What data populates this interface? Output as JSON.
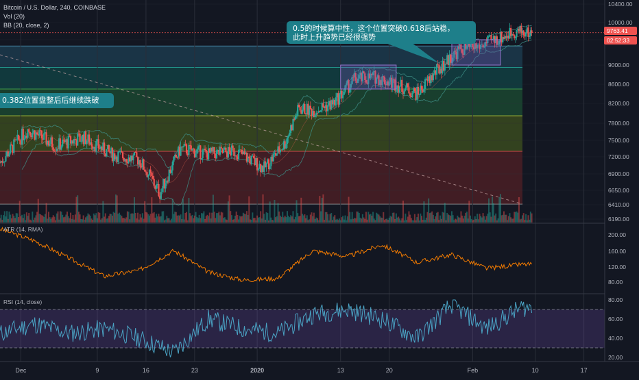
{
  "legend": {
    "symbol": "Bitcoin / U.S. Dollar, 240, COINBASE",
    "volume": "Vol (20)",
    "bollinger": "BB (20, close, 2)"
  },
  "annotations": {
    "upper_line1": "0.5的时候算中性，这个位置突破0.618后站稳，",
    "upper_line2": "此时上升趋势已经很强势",
    "left": "0.382位置盘整后后继续跌破"
  },
  "price_axis": {
    "ticks": [
      "10400.00",
      "10000.00",
      "9600.00",
      "9000.00",
      "8600.00",
      "8200.00",
      "7800.00",
      "7500.00",
      "7200.00",
      "6900.00",
      "6650.00",
      "6410.00",
      "6190.00"
    ],
    "last_price": "9763.41",
    "countdown": "02:52:33"
  },
  "atr": {
    "label": "ATR (14, RMA)",
    "ticks": [
      "200.00",
      "160.00",
      "120.00",
      "80.00"
    ]
  },
  "rsi": {
    "label": "RSI (14, close)",
    "ticks": [
      "80.00",
      "60.00",
      "40.00",
      "20.00"
    ]
  },
  "time_axis": [
    "Dec",
    "9",
    "16",
    "23",
    "2020",
    "13",
    "20",
    "Feb",
    "10",
    "17"
  ],
  "colors": {
    "background": "#131722",
    "candle_up": "#26a69a",
    "candle_down": "#ef5350",
    "atr_line": "#f57c00",
    "rsi_line": "#4aa3c4",
    "callout_bg": "#1e7f8a",
    "last_price_tag": "#ef5350"
  },
  "chart_data": [
    {
      "type": "candlestick",
      "title": "Bitcoin / U.S. Dollar, 240, COINBASE",
      "x_range": [
        "2019-11-25",
        "2020-02-20"
      ],
      "ylim": [
        6190,
        10400
      ],
      "series": [
        {
          "name": "close",
          "x": [
            "2019-11-25",
            "2019-11-29",
            "2019-12-03",
            "2019-12-07",
            "2019-12-11",
            "2019-12-15",
            "2019-12-18",
            "2019-12-21",
            "2019-12-25",
            "2019-12-29",
            "2020-01-02",
            "2020-01-05",
            "2020-01-07",
            "2020-01-09",
            "2020-01-12",
            "2020-01-15",
            "2020-01-18",
            "2020-01-21",
            "2020-01-24",
            "2020-01-27",
            "2020-01-30",
            "2020-02-02",
            "2020-02-05",
            "2020-02-07",
            "2020-02-09"
          ],
          "values": [
            7100,
            7700,
            7400,
            7550,
            7250,
            7150,
            6600,
            7350,
            7250,
            7300,
            7000,
            7450,
            8100,
            8050,
            8200,
            8700,
            8750,
            8600,
            8400,
            8900,
            9350,
            9450,
            9650,
            9800,
            9760
          ]
        }
      ],
      "fib_levels": [
        9450,
        8950,
        8500,
        7950,
        7300,
        6420
      ],
      "highlight_boxes": [
        [
          "2020-01-13",
          "2020-01-21"
        ],
        [
          "2020-01-29",
          "2020-02-05"
        ]
      ]
    },
    {
      "type": "line",
      "title": "ATR (14, RMA)",
      "ylim": [
        70,
        230
      ],
      "series": [
        {
          "name": "ATR",
          "x": [
            "2019-11-25",
            "2019-11-30",
            "2019-12-05",
            "2019-12-10",
            "2019-12-15",
            "2019-12-20",
            "2019-12-25",
            "2019-12-30",
            "2020-01-04",
            "2020-01-09",
            "2020-01-14",
            "2020-01-19",
            "2020-01-24",
            "2020-01-29",
            "2020-02-03",
            "2020-02-08"
          ],
          "values": [
            215,
            185,
            140,
            95,
            110,
            160,
            105,
            85,
            90,
            160,
            145,
            175,
            130,
            150,
            115,
            125
          ]
        }
      ]
    },
    {
      "type": "line",
      "title": "RSI (14, close)",
      "ylim": [
        15,
        85
      ],
      "reference_lines": [
        70,
        30
      ],
      "series": [
        {
          "name": "RSI",
          "x": [
            "2019-11-25",
            "2019-11-30",
            "2019-12-05",
            "2019-12-10",
            "2019-12-15",
            "2019-12-20",
            "2019-12-25",
            "2019-12-30",
            "2020-01-04",
            "2020-01-09",
            "2020-01-14",
            "2020-01-19",
            "2020-01-24",
            "2020-01-29",
            "2020-02-03",
            "2020-02-08"
          ],
          "values": [
            45,
            55,
            45,
            50,
            40,
            25,
            60,
            50,
            45,
            65,
            70,
            60,
            40,
            75,
            50,
            72
          ]
        }
      ]
    }
  ]
}
